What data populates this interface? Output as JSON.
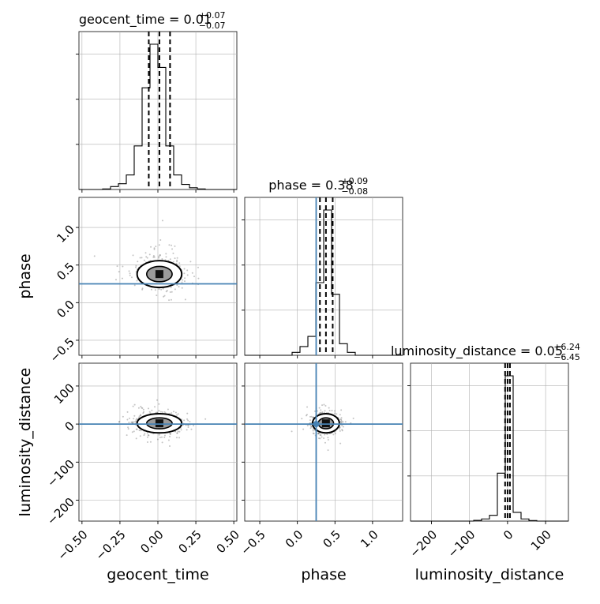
{
  "chart_data": {
    "type": "corner",
    "parameters": [
      "geocent_time",
      "phase",
      "luminosity_distance"
    ],
    "truths": {
      "geocent_time": 0.0,
      "phase": 0.25,
      "luminosity_distance": 0.0
    },
    "truth_color": "#4682b4",
    "ranges": {
      "geocent_time": [
        -0.52,
        0.52
      ],
      "phase": [
        -0.7,
        1.4
      ],
      "luminosity_distance": [
        -255,
        160
      ]
    },
    "ticks": {
      "geocent_time": [
        -0.5,
        -0.25,
        0.0,
        0.25,
        0.5
      ],
      "phase": [
        -0.5,
        0.0,
        0.5,
        1.0
      ],
      "phase_x": [
        -0.5,
        0.0,
        0.5,
        1.0
      ],
      "luminosity_distance": [
        -200,
        -100,
        0,
        100
      ],
      "luminosity_distance_y": [
        -200,
        -100,
        0,
        100
      ]
    },
    "tick_labels": {
      "geocent_time": [
        "−0.50",
        "−0.25",
        "0.00",
        "0.25",
        "0.50"
      ],
      "phase_y": [
        "−0.5",
        "0.0",
        "0.5",
        "1.0"
      ],
      "phase_x": [
        "−0.5",
        "0.0",
        "0.5",
        "1.0"
      ],
      "luminosity_distance_x": [
        "−200",
        "−100",
        "0",
        "100"
      ],
      "luminosity_distance_y": [
        "−200",
        "−100",
        "0",
        "100"
      ]
    },
    "titles": {
      "geocent_time": {
        "text": "geocent_time = 0.01",
        "plus": "+0.07",
        "minus": "−0.07"
      },
      "phase": {
        "text": "phase = 0.38",
        "plus": "+0.09",
        "minus": "−0.08"
      },
      "luminosity_distance": {
        "text": "luminosity_distance = 0.05",
        "plus": "+6.24",
        "minus": "−6.45"
      }
    },
    "quantiles": {
      "geocent_time": [
        -0.06,
        0.01,
        0.08
      ],
      "phase": [
        0.3,
        0.38,
        0.47
      ],
      "luminosity_distance": [
        -6.4,
        0.05,
        6.3
      ]
    },
    "histograms": {
      "geocent_time": {
        "edges": [
          -0.52,
          -0.468,
          -0.416,
          -0.364,
          -0.312,
          -0.26,
          -0.208,
          -0.156,
          -0.104,
          -0.052,
          0.0,
          0.052,
          0.104,
          0.156,
          0.208,
          0.26,
          0.312,
          0.364,
          0.416,
          0.468,
          0.52
        ],
        "counts": [
          0,
          0,
          0,
          0.004,
          0.02,
          0.04,
          0.1,
          0.3,
          0.7,
          1.0,
          0.84,
          0.3,
          0.1,
          0.035,
          0.012,
          0.004,
          0,
          0,
          0,
          0
        ]
      },
      "phase": {
        "edges": [
          -0.7,
          -0.595,
          -0.49,
          -0.385,
          -0.28,
          -0.175,
          -0.07,
          0.035,
          0.14,
          0.245,
          0.35,
          0.455,
          0.56,
          0.665,
          0.77,
          0.875,
          0.98,
          1.085,
          1.19,
          1.295,
          1.4
        ],
        "counts": [
          0,
          0,
          0,
          0,
          0,
          0,
          0.02,
          0.06,
          0.13,
          0.5,
          1.0,
          0.42,
          0.08,
          0.02,
          0,
          0,
          0,
          0,
          0,
          0
        ]
      },
      "luminosity_distance": {
        "edges": [
          -255,
          -234.25,
          -213.5,
          -192.75,
          -172,
          -151.25,
          -130.5,
          -109.75,
          -89,
          -68.25,
          -47.5,
          -26.75,
          -6,
          14.75,
          35.5,
          56.25,
          77,
          97.75,
          118.5,
          139.25,
          160
        ],
        "counts": [
          0,
          0,
          0,
          0,
          0,
          0,
          0,
          0,
          0.005,
          0.015,
          0.04,
          0.33,
          1.0,
          0.06,
          0.015,
          0.004,
          0,
          0,
          0,
          0
        ]
      }
    },
    "grid": true
  }
}
